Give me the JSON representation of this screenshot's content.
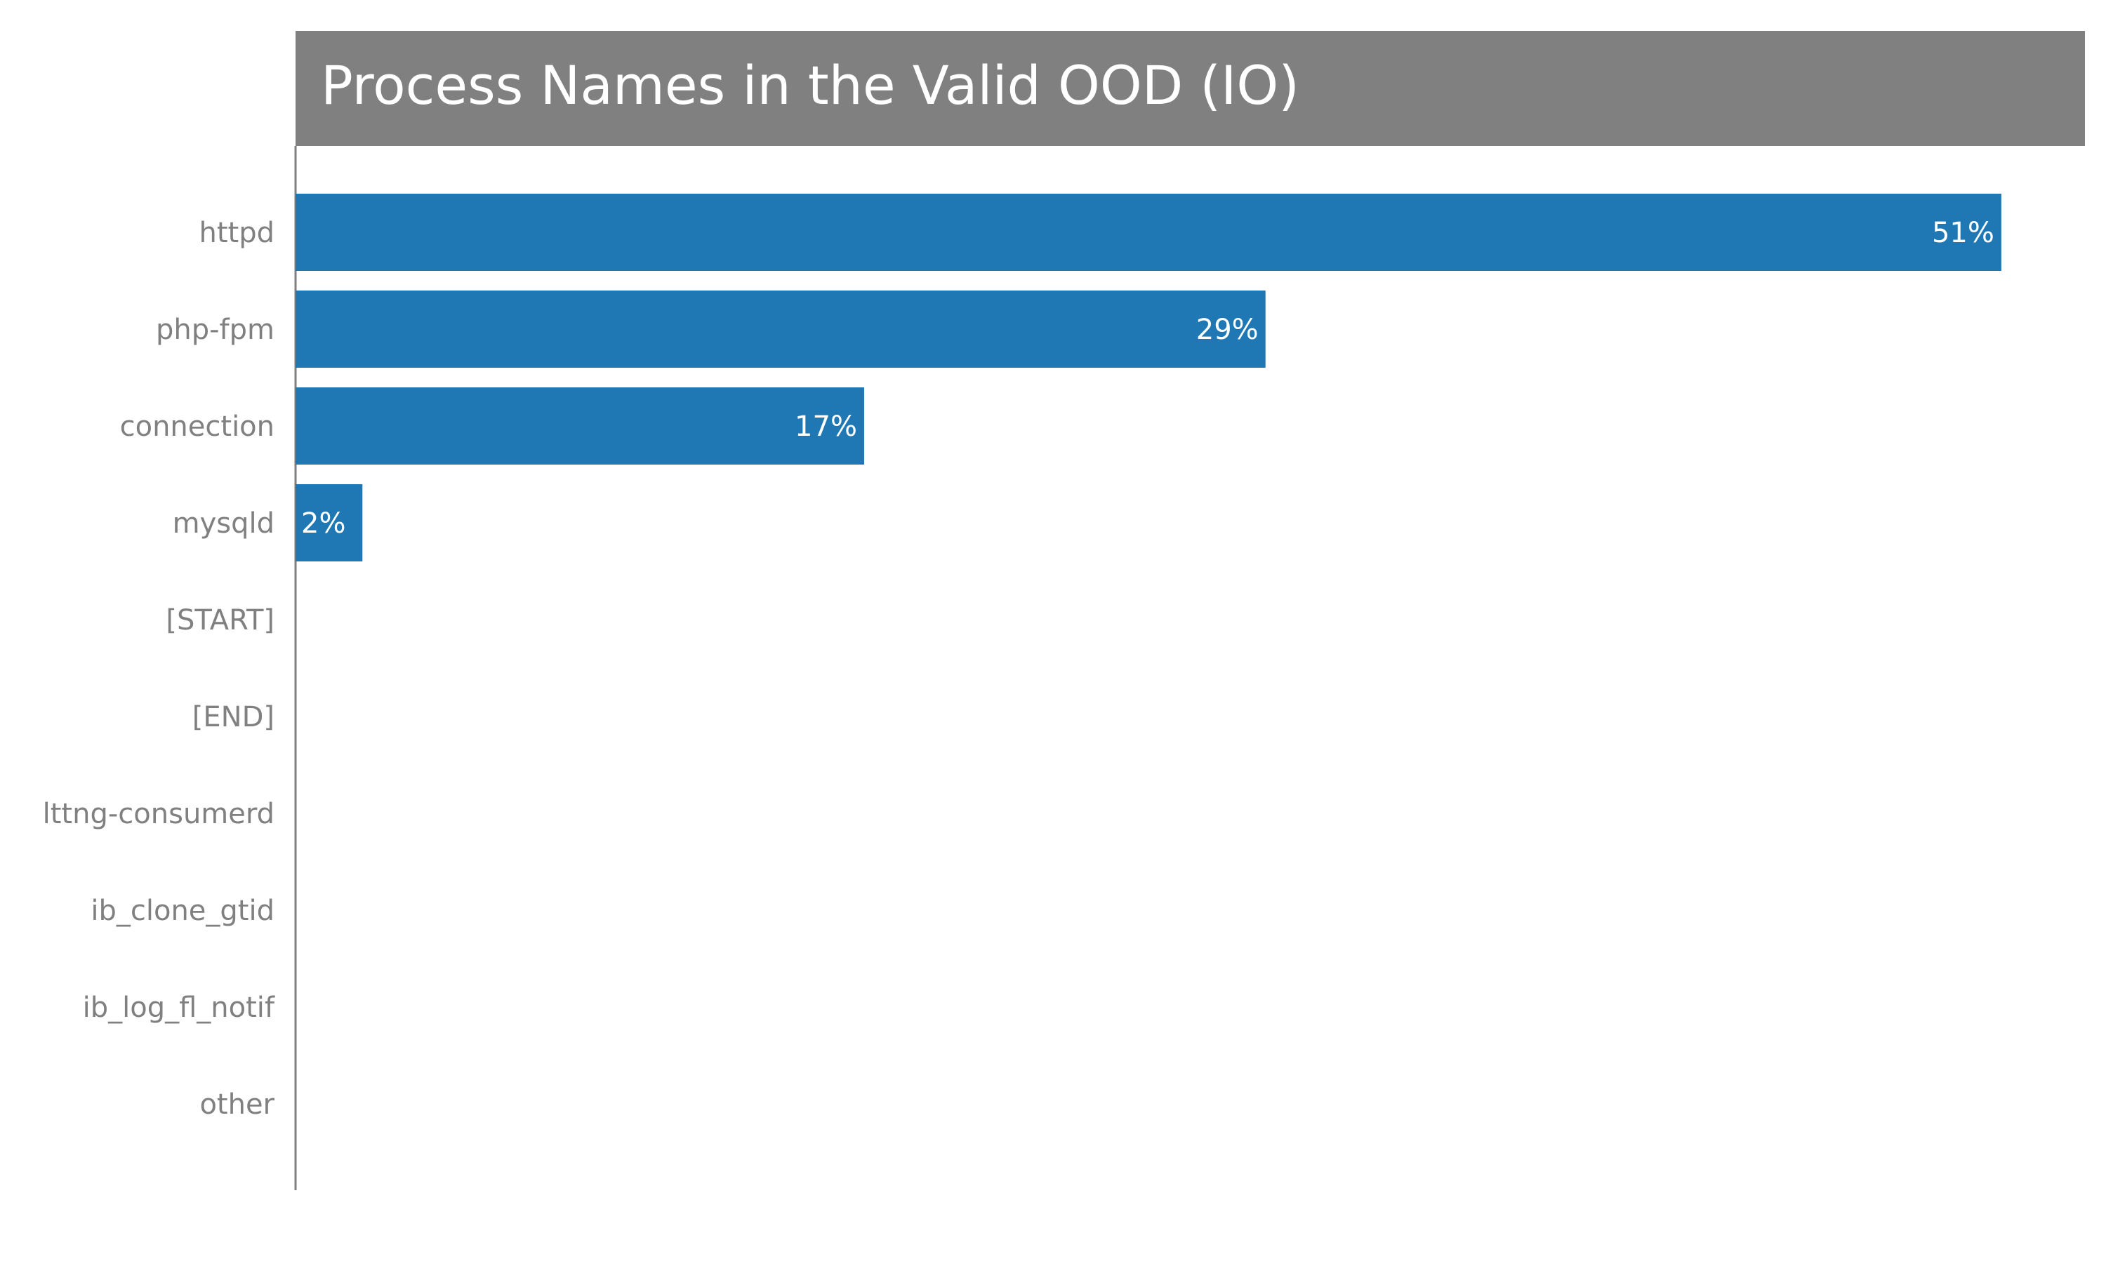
{
  "chart_data": {
    "type": "bar",
    "orientation": "horizontal",
    "title": "Process Names in the Valid OOD (IO)",
    "xlabel": "",
    "ylabel": "",
    "categories": [
      "httpd",
      "php-fpm",
      "connection",
      "mysqld",
      "[START]",
      "[END]",
      "lttng-consumerd",
      "ib_clone_gtid",
      "ib_log_fl_notif",
      "other"
    ],
    "values": [
      51,
      29,
      17,
      2,
      0,
      0,
      0,
      0,
      0,
      0
    ],
    "value_labels": [
      "51%",
      "29%",
      "17%",
      "2%",
      "",
      "",
      "",
      "",
      "",
      ""
    ],
    "xlim": [
      0,
      53.5
    ],
    "grid": false,
    "legend": "none"
  },
  "colors": {
    "bar": "#1f77b4",
    "title_band": "#808080",
    "axis": "#808080",
    "tick_label": "#808080",
    "data_label": "#ffffff",
    "title_text": "#ffffff"
  }
}
